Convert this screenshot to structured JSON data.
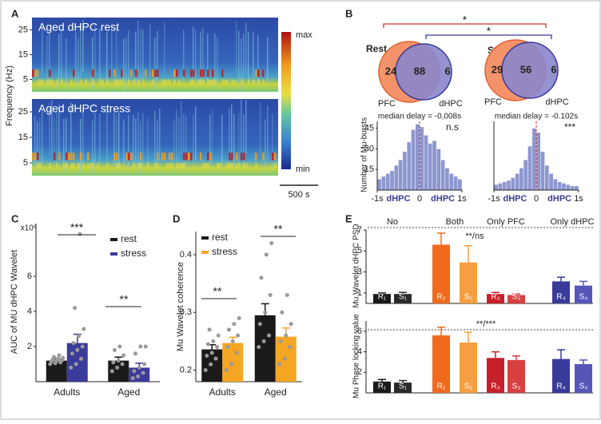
{
  "chart_data": [
    {
      "panel": "A",
      "type": "spectrogram",
      "subplot_titles": [
        "Aged dHPC rest",
        "Aged dHPC stress"
      ],
      "ylabel": "Frequency (Hz)",
      "ylim": [
        0,
        30
      ],
      "yticks": [
        5,
        15,
        25
      ],
      "colorbar_labels": [
        "max",
        "min"
      ],
      "scalebar": "500 s"
    },
    {
      "panel": "B",
      "type": "venn",
      "sets": [
        "PFC",
        "dHPC"
      ],
      "groups": [
        {
          "name": "Rest",
          "counts": [
            24,
            88,
            6
          ]
        },
        {
          "name": "Stress",
          "counts": [
            29,
            56,
            6
          ]
        }
      ],
      "significance": [
        "*",
        "*"
      ]
    },
    {
      "type": "histogram",
      "ylabel": "Number of Mu-bursts",
      "bins": [
        -1,
        -0.9,
        -0.8,
        -0.7,
        -0.6,
        -0.5,
        -0.4,
        -0.3,
        -0.2,
        -0.1,
        0,
        0.1,
        0.2,
        0.3,
        0.4,
        0.5,
        0.6,
        0.7,
        0.8,
        0.9,
        1
      ],
      "xlim": [
        -1,
        1
      ],
      "xticks": [
        {
          "value": -1,
          "label": "-1s"
        },
        0,
        {
          "value": 1,
          "label": "1s"
        }
      ],
      "ylim": [
        0,
        50
      ],
      "yticks": [
        15,
        30,
        45
      ],
      "direction_labels": [
        "dHPC",
        "dHPC"
      ],
      "color": "#8d97cf",
      "subplots": [
        {
          "annotation": "median delay = -0,008s",
          "significance": "n.s",
          "counts": [
            8,
            10,
            12,
            14,
            18,
            22,
            28,
            35,
            44,
            48,
            46,
            40,
            34,
            36,
            30,
            22,
            16,
            12,
            10,
            8
          ]
        },
        {
          "annotation": "median delay = -0.102s",
          "significance": "***",
          "counts": [
            4,
            5,
            6,
            7,
            9,
            12,
            16,
            22,
            32,
            45,
            42,
            28,
            18,
            12,
            8,
            6,
            5,
            4,
            3,
            3
          ]
        }
      ]
    },
    {
      "panel": "C",
      "type": "bar",
      "ylabel": "AUC of MU dHPC Wavelet",
      "y_multiplier": "x10⁶",
      "categories": [
        "Adults",
        "Aged"
      ],
      "ylim": [
        0,
        9
      ],
      "yticks": [
        2,
        4,
        6
      ],
      "annotations": [
        "***",
        "**"
      ],
      "series": [
        {
          "name": "rest",
          "color": "#1a1a1a",
          "values": [
            1.2,
            1.2
          ],
          "errors": [
            0.1,
            0.2
          ],
          "points": [
            [
              1.0,
              1.05,
              1.1,
              1.15,
              1.2,
              1.2,
              1.25,
              1.3,
              1.35,
              1.4,
              1.5
            ],
            [
              0.6,
              0.8,
              1.0,
              1.1,
              1.2,
              1.5,
              1.8,
              2.0
            ]
          ]
        },
        {
          "name": "stress",
          "color": "#3b3b9c",
          "values": [
            2.2,
            0.8
          ],
          "errors": [
            0.5,
            0.25
          ],
          "points": [
            [
              0.8,
              1.0,
              1.3,
              1.6,
              1.8,
              2.0,
              2.2,
              2.6,
              3.0,
              4.2,
              8.4
            ],
            [
              0.2,
              0.3,
              0.5,
              0.6,
              0.8,
              1.0,
              1.6,
              2.0,
              2.0
            ]
          ]
        }
      ]
    },
    {
      "panel": "D",
      "type": "bar",
      "ylabel": "Mu Wavelet coherence",
      "categories": [
        "Adults",
        "Aged"
      ],
      "ylim": [
        0.18,
        0.44
      ],
      "yticks": [
        0.2,
        0.3,
        0.4
      ],
      "annotations": [
        "**",
        "**"
      ],
      "series": [
        {
          "name": "rest",
          "color": "#1a1a1a",
          "values": [
            0.236,
            0.295
          ],
          "errors": [
            0.008,
            0.02
          ],
          "points": [
            [
              0.2,
              0.21,
              0.22,
              0.225,
              0.23,
              0.24,
              0.245,
              0.25,
              0.26,
              0.27
            ],
            [
              0.24,
              0.25,
              0.26,
              0.28,
              0.3,
              0.33,
              0.36,
              0.4,
              0.42
            ]
          ]
        },
        {
          "name": "stress",
          "color": "#f5a623",
          "values": [
            0.247,
            0.258
          ],
          "errors": [
            0.01,
            0.015
          ],
          "points": [
            [
              0.2,
              0.21,
              0.23,
              0.24,
              0.25,
              0.26,
              0.27,
              0.28,
              0.29
            ],
            [
              0.21,
              0.22,
              0.24,
              0.25,
              0.26,
              0.28,
              0.3,
              0.33
            ]
          ]
        }
      ]
    },
    {
      "panel": "E",
      "type": "bar",
      "ylabel": "Mu Wavelet dHPC PSD",
      "groups": [
        "No",
        "Both",
        "Only PFC",
        "Only dHPC"
      ],
      "categories": [
        "R₁",
        "S₁",
        "R₂",
        "S₂",
        "R₃",
        "S₃",
        "R₄",
        "S₄"
      ],
      "values": [
        0.9,
        0.9,
        5.6,
        3.9,
        0.9,
        0.8,
        2.1,
        1.7
      ],
      "errors": [
        0.1,
        0.15,
        1.1,
        1.6,
        0.15,
        0.1,
        0.4,
        0.4
      ],
      "colors": [
        "#1a1a1a",
        "#2a2a2a",
        "#f06a1e",
        "#f5a040",
        "#c8202a",
        "#d84040",
        "#3a3a9a",
        "#5656b8"
      ],
      "ylim": [
        0,
        7
      ],
      "yticks": [
        1,
        3,
        5,
        7
      ],
      "annotations": [
        "**/ns"
      ]
    },
    {
      "type": "bar",
      "ylabel": "Mu Phase locking value",
      "categories": [
        "R₁",
        "S₁",
        "R₂",
        "S₂",
        "R₃",
        "S₃",
        "R₄",
        "S₄"
      ],
      "values": [
        0.11,
        0.1,
        0.56,
        0.49,
        0.34,
        0.32,
        0.33,
        0.28
      ],
      "errors": [
        0.02,
        0.02,
        0.08,
        0.1,
        0.06,
        0.04,
        0.09,
        0.04
      ],
      "colors": [
        "#1a1a1a",
        "#2a2a2a",
        "#f06a1e",
        "#f5a040",
        "#c8202a",
        "#d84040",
        "#3a3a9a",
        "#5656b8"
      ],
      "ylim": [
        0,
        0.7
      ],
      "yticks": [
        {
          "value": 0.2,
          "label": ".2"
        },
        {
          "value": 0.4,
          "label": ".4"
        },
        {
          "value": 0.6,
          "label": ".6"
        }
      ],
      "annotations": [
        "**/***"
      ]
    }
  ]
}
